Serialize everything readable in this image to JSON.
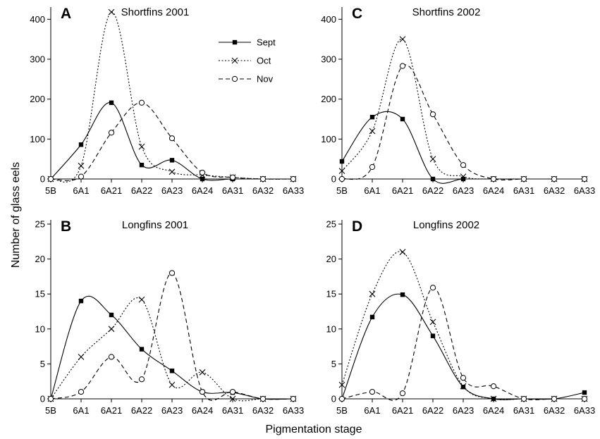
{
  "figure": {
    "ylabel": "Number of glass eels",
    "xlabel": "Pigmentation stage"
  },
  "legend": [
    {
      "name": "Sept",
      "marker": "square",
      "dash": "solid"
    },
    {
      "name": "Oct",
      "marker": "x",
      "dash": "dotted"
    },
    {
      "name": "Nov",
      "marker": "circle",
      "dash": "dashed"
    }
  ],
  "chart_data": [
    {
      "type": "line",
      "letter": "A",
      "title": "Shortfins 2001",
      "categories": [
        "5B",
        "6A1",
        "6A21",
        "6A22",
        "6A23",
        "6A24",
        "6A31",
        "6A32",
        "6A33"
      ],
      "ylim": [
        0,
        420
      ],
      "yticks": [
        0,
        100,
        200,
        300,
        400
      ],
      "series": [
        {
          "name": "Sept",
          "values": [
            0,
            86,
            191,
            35,
            47,
            0,
            0,
            0,
            0
          ]
        },
        {
          "name": "Oct",
          "values": [
            0,
            33,
            418,
            81,
            18,
            10,
            4,
            0,
            0
          ]
        },
        {
          "name": "Nov",
          "values": [
            0,
            6,
            116,
            191,
            102,
            16,
            4,
            0,
            0
          ]
        }
      ]
    },
    {
      "type": "line",
      "letter": "C",
      "title": "Shortfins 2002",
      "categories": [
        "5B",
        "6A1",
        "6A21",
        "6A22",
        "6A23",
        "6A24",
        "6A31",
        "6A32",
        "6A33"
      ],
      "ylim": [
        0,
        420
      ],
      "yticks": [
        0,
        100,
        200,
        300,
        400
      ],
      "series": [
        {
          "name": "Sept",
          "values": [
            44,
            155,
            150,
            0,
            0,
            0,
            0,
            0,
            0
          ]
        },
        {
          "name": "Oct",
          "values": [
            20,
            120,
            350,
            50,
            6,
            0,
            0,
            0,
            0
          ]
        },
        {
          "name": "Nov",
          "values": [
            0,
            30,
            283,
            162,
            35,
            0,
            0,
            0,
            0
          ]
        }
      ]
    },
    {
      "type": "line",
      "letter": "B",
      "title": "Longfins 2001",
      "categories": [
        "5B",
        "6A1",
        "6A21",
        "6A22",
        "6A23",
        "6A24",
        "6A31",
        "6A32",
        "6A33"
      ],
      "ylim": [
        0,
        25
      ],
      "yticks": [
        0,
        5,
        10,
        15,
        20,
        25
      ],
      "series": [
        {
          "name": "Sept",
          "values": [
            0,
            14,
            12,
            7.1,
            4,
            1,
            0.9,
            0,
            0
          ]
        },
        {
          "name": "Oct",
          "values": [
            0,
            6,
            10,
            14.2,
            2,
            3.8,
            0,
            0,
            0
          ]
        },
        {
          "name": "Nov",
          "values": [
            0,
            1,
            6,
            2.8,
            18,
            1,
            1,
            0,
            0
          ]
        }
      ]
    },
    {
      "type": "line",
      "letter": "D",
      "title": "Longfins 2002",
      "categories": [
        "5B",
        "6A1",
        "6A21",
        "6A22",
        "6A23",
        "6A24",
        "6A31",
        "6A32",
        "6A33"
      ],
      "ylim": [
        0,
        25
      ],
      "yticks": [
        0,
        5,
        10,
        15,
        20,
        25
      ],
      "series": [
        {
          "name": "Sept",
          "values": [
            0,
            11.7,
            14.9,
            9,
            1.7,
            0,
            0,
            0,
            0.9
          ]
        },
        {
          "name": "Oct",
          "values": [
            2,
            15,
            21,
            11,
            1.8,
            0,
            0,
            0,
            0
          ]
        },
        {
          "name": "Nov",
          "values": [
            0,
            1,
            0.8,
            15.9,
            3,
            1.8,
            0,
            0,
            0
          ]
        }
      ]
    }
  ]
}
